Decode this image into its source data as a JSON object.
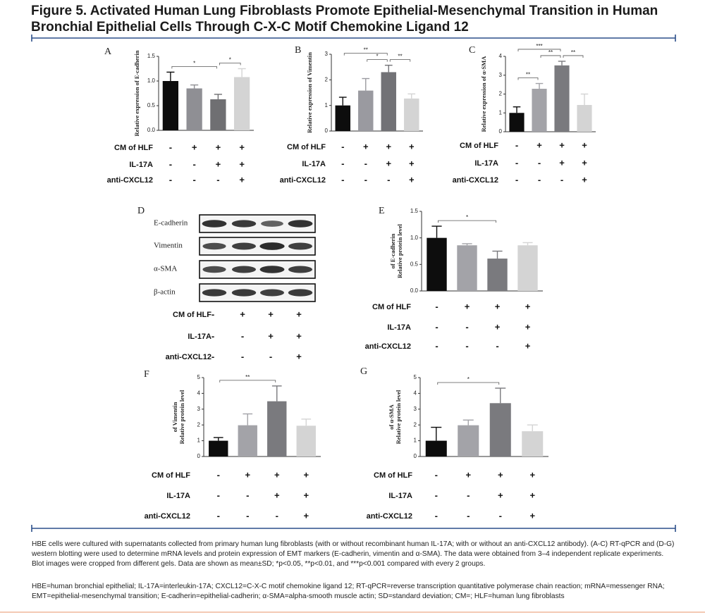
{
  "title": "Figure 5. Activated Human Lung Fibroblasts Promote Epithelial-Mesenchymal Transition in Human Bronchial Epithelial Cells Through C-X-C Motif Chemokine Ligand 12",
  "chart_data": [
    {
      "type": "bar",
      "panel": "A",
      "ylabel": "Relative expression of E-cadherin",
      "values": [
        1.0,
        0.85,
        0.63,
        1.08
      ],
      "errors": [
        0.18,
        0.07,
        0.1,
        0.17
      ],
      "colors": [
        "#0d0d0d",
        "#8f8f94",
        "#6f6f72",
        "#d4d4d4"
      ],
      "ylim": [
        0,
        1.5
      ],
      "yticks": [
        {
          "value": 0,
          "label": "0.0"
        },
        0.5,
        {
          "value": 1,
          "label": "1.0"
        },
        1.5
      ],
      "significance": [
        {
          "from": 0,
          "to": 2,
          "label": "*"
        },
        {
          "from": 2,
          "to": 3,
          "label": "*"
        }
      ],
      "conditions": [
        {
          "label": "CM of HLF",
          "signs": [
            "-",
            "+",
            "+",
            "+"
          ]
        },
        {
          "label": "IL-17A",
          "signs": [
            "-",
            "-",
            "+",
            "+"
          ]
        },
        {
          "label": "anti-CXCL12",
          "signs": [
            "-",
            "-",
            "-",
            "+"
          ]
        }
      ]
    },
    {
      "type": "bar",
      "panel": "B",
      "ylabel": "Relative expression of Vimentin",
      "values": [
        1.0,
        1.58,
        2.3,
        1.27
      ],
      "errors": [
        0.32,
        0.47,
        0.27,
        0.18
      ],
      "colors": [
        "#0d0d0d",
        "#9a9aa0",
        "#727276",
        "#d4d4d4"
      ],
      "ylim": [
        0,
        3
      ],
      "yticks": [
        0,
        1,
        2,
        3
      ],
      "significance": [
        {
          "from": 0,
          "to": 2,
          "label": "**"
        },
        {
          "from": 1,
          "to": 2,
          "label": "*"
        },
        {
          "from": 2,
          "to": 3,
          "label": "**"
        }
      ],
      "conditions": [
        {
          "label": "CM of HLF",
          "signs": [
            "-",
            "+",
            "+",
            "+"
          ]
        },
        {
          "label": "IL-17A",
          "signs": [
            "-",
            "-",
            "+",
            "+"
          ]
        },
        {
          "label": "anti-CXCL12",
          "signs": [
            "-",
            "-",
            "-",
            "+"
          ]
        }
      ]
    },
    {
      "type": "bar",
      "panel": "C",
      "ylabel": "Relative expression of α-SMA",
      "values": [
        1.0,
        2.28,
        3.52,
        1.42
      ],
      "errors": [
        0.32,
        0.28,
        0.22,
        0.58
      ],
      "colors": [
        "#0d0d0d",
        "#a3a3a8",
        "#7a7a7e",
        "#d4d4d4"
      ],
      "ylim": [
        0,
        4
      ],
      "yticks": [
        0,
        1,
        2,
        3,
        4
      ],
      "significance": [
        {
          "from": 0,
          "to": 2,
          "label": "***"
        },
        {
          "from": 0,
          "to": 1,
          "label": "**"
        },
        {
          "from": 1,
          "to": 2,
          "label": "**"
        },
        {
          "from": 2,
          "to": 3,
          "label": "**"
        }
      ],
      "conditions": [
        {
          "label": "CM of HLF",
          "signs": [
            "-",
            "+",
            "+",
            "+"
          ]
        },
        {
          "label": "IL-17A",
          "signs": [
            "-",
            "-",
            "+",
            "+"
          ]
        },
        {
          "label": "anti-CXCL12",
          "signs": [
            "-",
            "-",
            "-",
            "+"
          ]
        }
      ]
    },
    {
      "type": "bar",
      "panel": "E",
      "ylabel": [
        "Relative protein level",
        "of E-cadherin"
      ],
      "values": [
        1.0,
        0.86,
        0.61,
        0.86
      ],
      "errors": [
        0.22,
        0.03,
        0.14,
        0.05
      ],
      "colors": [
        "#0d0d0d",
        "#a3a3a8",
        "#7a7a7e",
        "#d4d4d4"
      ],
      "ylim": [
        0,
        1.5
      ],
      "yticks": [
        {
          "value": 0,
          "label": "0.0"
        },
        0.5,
        {
          "value": 1,
          "label": "1.0"
        },
        1.5
      ],
      "significance": [
        {
          "from": 0,
          "to": 2,
          "label": "*"
        }
      ],
      "conditions": [
        {
          "label": "CM of HLF",
          "signs": [
            "-",
            "+",
            "+",
            "+"
          ]
        },
        {
          "label": "IL-17A",
          "signs": [
            "-",
            "-",
            "+",
            "+"
          ]
        },
        {
          "label": "anti-CXCL12",
          "signs": [
            "-",
            "-",
            "-",
            "+"
          ]
        }
      ]
    },
    {
      "type": "bar",
      "panel": "F",
      "ylabel": [
        "Relative protein level",
        "of Vimentin"
      ],
      "values": [
        1.0,
        1.98,
        3.5,
        1.95
      ],
      "errors": [
        0.2,
        0.72,
        0.97,
        0.42
      ],
      "colors": [
        "#0d0d0d",
        "#a3a3a8",
        "#7a7a7e",
        "#d4d4d4"
      ],
      "ylim": [
        0,
        5
      ],
      "yticks": [
        0,
        1,
        2,
        3,
        4,
        5
      ],
      "significance": [
        {
          "from": 0,
          "to": 2,
          "label": "**"
        }
      ],
      "conditions": [
        {
          "label": "CM of HLF",
          "signs": [
            "-",
            "+",
            "+",
            "+"
          ]
        },
        {
          "label": "IL-17A",
          "signs": [
            "-",
            "-",
            "+",
            "+"
          ]
        },
        {
          "label": "anti-CXCL12",
          "signs": [
            "-",
            "-",
            "-",
            "+"
          ]
        }
      ]
    },
    {
      "type": "bar",
      "panel": "G",
      "ylabel": [
        "Relative protein level",
        "of α-SMA"
      ],
      "values": [
        1.0,
        1.98,
        3.38,
        1.6
      ],
      "errors": [
        0.85,
        0.33,
        0.95,
        0.4
      ],
      "colors": [
        "#0d0d0d",
        "#a3a3a8",
        "#7a7a7e",
        "#d4d4d4"
      ],
      "ylim": [
        0,
        5
      ],
      "yticks": [
        0,
        1,
        2,
        3,
        4,
        5
      ],
      "significance": [
        {
          "from": 0,
          "to": 2,
          "label": "*"
        }
      ],
      "conditions": [
        {
          "label": "CM of HLF",
          "signs": [
            "-",
            "+",
            "+",
            "+"
          ]
        },
        {
          "label": "IL-17A",
          "signs": [
            "-",
            "-",
            "+",
            "+"
          ]
        },
        {
          "label": "anti-CXCL12",
          "signs": [
            "-",
            "-",
            "-",
            "+"
          ]
        }
      ]
    }
  ],
  "blot": {
    "panel": "D",
    "bands": [
      "E-cadherin",
      "Vimentin",
      "α-SMA",
      "β-actin"
    ],
    "conditions": [
      {
        "label": "CM of HLF",
        "signs": [
          "-",
          "+",
          "+",
          "+"
        ]
      },
      {
        "label": "IL-17A",
        "signs": [
          "-",
          "-",
          "+",
          "+"
        ]
      },
      {
        "label": "anti-CXCL12",
        "signs": [
          "-",
          "-",
          "-",
          "+"
        ]
      }
    ]
  },
  "caption": [
    "HBE cells were cultured with supernatants collected from primary human lung fibroblasts (with or without recombinant human IL-17A; with or without an anti-CXCL12 antibody). (A-C) RT-qPCR and (D-G) western blotting were used to determine mRNA levels and protein expression of EMT markers (E-cadherin, vimentin and α-SMA). The data were obtained from 3–4 independent replicate experiments. Blot images were cropped from different gels. Data are shown as mean±SD; *p<0.05, **p<0.01, and ***p<0.001 compared with every 2 groups.",
    "HBE=human bronchial epithelial; IL-17A=interleukin-17A; CXCL12=C-X-C motif chemokine ligand 12; RT-qPCR=reverse transcription quantitative polymerase chain reaction; mRNA=messenger RNA; EMT=epithelial-mesenchymal transition; E-cadherin=epithelial-cadherin; α-SMA=alpha-smooth muscle actin; SD=standard deviation; CM=; HLF=human lung fibroblasts"
  ]
}
